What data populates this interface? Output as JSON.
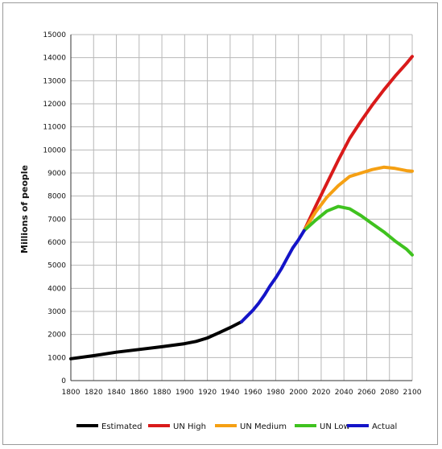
{
  "chart_data": {
    "type": "line",
    "title": "",
    "xlabel": "",
    "ylabel": "Millions of people",
    "xlim": [
      1800,
      2100
    ],
    "ylim": [
      0,
      15000
    ],
    "x_ticks": [
      1800,
      1820,
      1840,
      1860,
      1880,
      1900,
      1920,
      1940,
      1960,
      1980,
      2000,
      2020,
      2040,
      2060,
      2080,
      2100
    ],
    "y_ticks": [
      0,
      1000,
      2000,
      3000,
      4000,
      5000,
      6000,
      7000,
      8000,
      9000,
      10000,
      11000,
      12000,
      13000,
      14000,
      15000
    ],
    "grid": true,
    "legend_position": "bottom",
    "series": [
      {
        "name": "Estimated",
        "color": "#000000",
        "x": [
          1800,
          1820,
          1840,
          1860,
          1880,
          1900,
          1910,
          1920,
          1930,
          1940,
          1950
        ],
        "y": [
          950,
          1080,
          1230,
          1350,
          1470,
          1600,
          1700,
          1850,
          2070,
          2300,
          2550
        ]
      },
      {
        "name": "UN High",
        "color": "#d91a1a",
        "x": [
          2005,
          2015,
          2025,
          2035,
          2045,
          2055,
          2065,
          2075,
          2085,
          2095,
          2100
        ],
        "y": [
          6500,
          7550,
          8550,
          9550,
          10500,
          11250,
          11950,
          12600,
          13200,
          13750,
          14050
        ]
      },
      {
        "name": "UN Medium",
        "color": "#f5a013",
        "x": [
          2005,
          2015,
          2025,
          2035,
          2045,
          2055,
          2065,
          2075,
          2085,
          2095,
          2100
        ],
        "y": [
          6500,
          7300,
          7950,
          8450,
          8850,
          9000,
          9150,
          9250,
          9200,
          9100,
          9080
        ]
      },
      {
        "name": "UN Low",
        "color": "#3fc21f",
        "x": [
          2005,
          2015,
          2025,
          2035,
          2045,
          2055,
          2065,
          2075,
          2085,
          2095,
          2100
        ],
        "y": [
          6500,
          6950,
          7350,
          7550,
          7450,
          7150,
          6800,
          6450,
          6050,
          5700,
          5450
        ]
      },
      {
        "name": "Actual",
        "color": "#1414c8",
        "x": [
          1950,
          1955,
          1960,
          1965,
          1970,
          1975,
          1980,
          1985,
          1990,
          1995,
          2000,
          2005
        ],
        "y": [
          2550,
          2800,
          3050,
          3350,
          3700,
          4100,
          4450,
          4850,
          5300,
          5750,
          6100,
          6500
        ]
      }
    ]
  }
}
